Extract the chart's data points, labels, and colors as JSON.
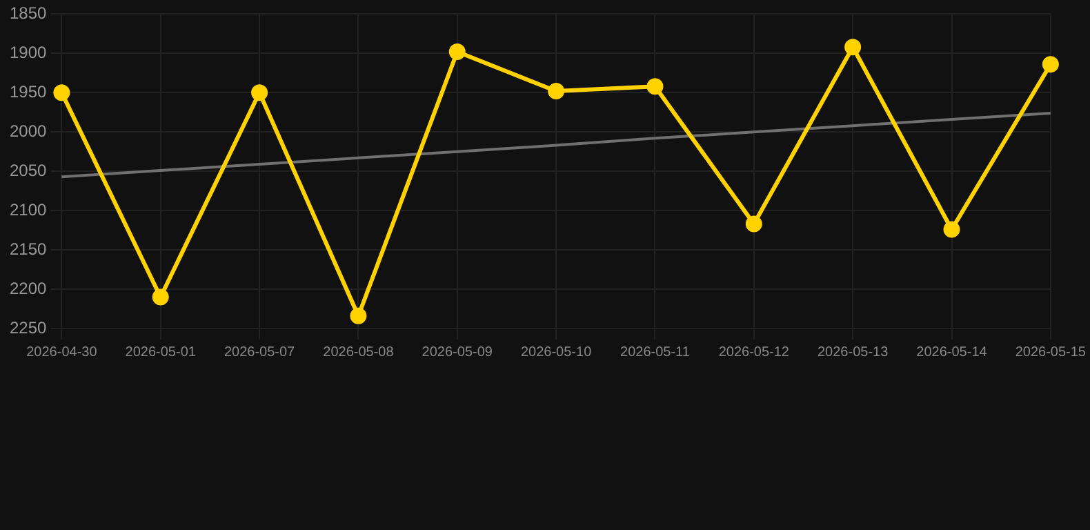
{
  "chart_data": {
    "type": "line",
    "categories": [
      "2026-04-30",
      "2026-05-01",
      "2026-05-07",
      "2026-05-08",
      "2026-05-09",
      "2026-05-10",
      "2026-05-11",
      "2026-05-12",
      "2026-05-13",
      "2026-05-14",
      "2026-05-15"
    ],
    "series": [
      {
        "color": "#ffd200",
        "values": [
          1950,
          2210,
          1950,
          2234,
          1898,
          1948,
          1942,
          2117,
          1892,
          2124,
          1914
        ],
        "marker": "circle"
      },
      {
        "type": "line",
        "color": "#707070",
        "values": [
          2057,
          2049,
          2041,
          2033,
          2025,
          2017,
          2008,
          2000,
          1992,
          1984,
          1976
        ],
        "marker": "none"
      }
    ],
    "ylim": [
      2250,
      1850
    ],
    "yticks": [
      1850,
      1900,
      1950,
      2000,
      2050,
      2100,
      2150,
      2200,
      2250
    ],
    "grid": true,
    "legend": false
  }
}
